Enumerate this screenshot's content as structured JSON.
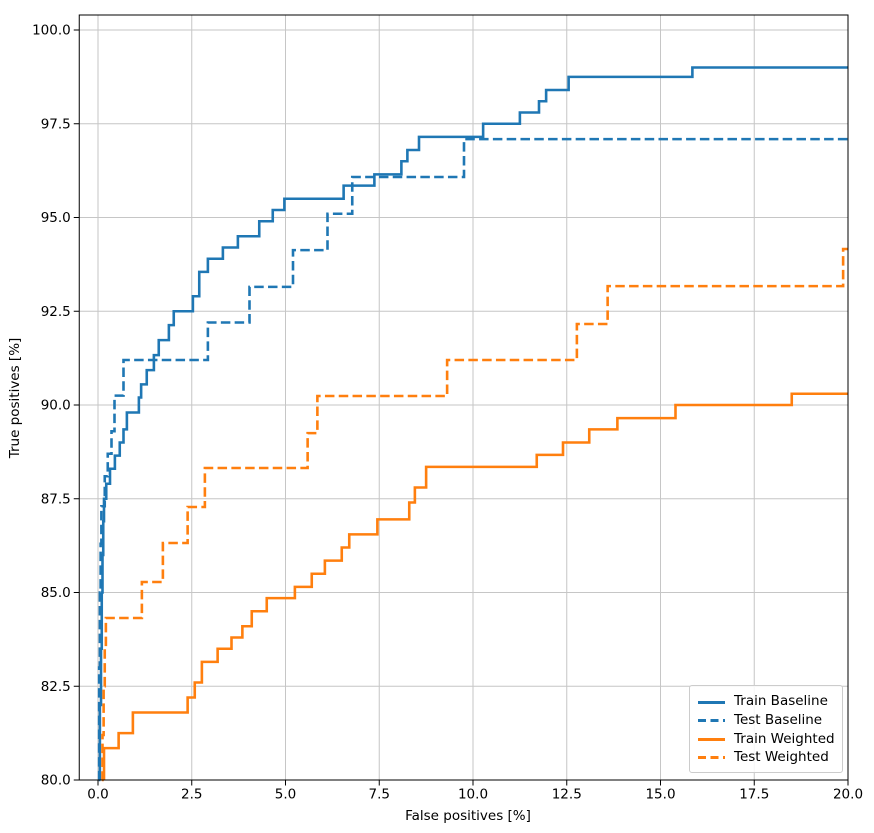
{
  "figure": {
    "background": "#ffffff",
    "axis_color": "#000000",
    "grid_color": "#c6c6c6",
    "text_color": "#000000"
  },
  "chart_data": {
    "type": "line",
    "subtype": "step-roc",
    "title": "",
    "xlabel": "False positives [%]",
    "ylabel": "True positives [%]",
    "xlim": [
      -0.5,
      20
    ],
    "ylim": [
      80,
      100.4
    ],
    "grid": true,
    "legend_position": "lower right",
    "xticks": {
      "values": [
        0,
        2.5,
        5,
        7.5,
        10,
        12.5,
        15,
        17.5,
        20
      ],
      "labels": [
        "0.0",
        "2.5",
        "5.0",
        "7.5",
        "10.0",
        "12.5",
        "15.0",
        "17.5",
        "20.0"
      ]
    },
    "yticks": {
      "values": [
        80,
        82.5,
        85,
        87.5,
        90,
        92.5,
        95,
        97.5,
        100
      ],
      "labels": [
        "80.0",
        "82.5",
        "85.0",
        "87.5",
        "90.0",
        "92.5",
        "95.0",
        "97.5",
        "100.0"
      ]
    },
    "series": [
      {
        "name": "Train Baseline",
        "color": "#1f77b4",
        "linestyle": "solid",
        "x_start": 0.05,
        "x_end": 20,
        "steps": [
          [
            0.05,
            82.0
          ],
          [
            0.08,
            83.5
          ],
          [
            0.1,
            85.0
          ],
          [
            0.12,
            86.0
          ],
          [
            0.14,
            86.9
          ],
          [
            0.16,
            87.5
          ],
          [
            0.22,
            87.9
          ],
          [
            0.32,
            88.3
          ],
          [
            0.45,
            88.65
          ],
          [
            0.58,
            89.0
          ],
          [
            0.68,
            89.35
          ],
          [
            0.77,
            89.8
          ],
          [
            1.09,
            90.2
          ],
          [
            1.15,
            90.55
          ],
          [
            1.3,
            90.93
          ],
          [
            1.49,
            91.33
          ],
          [
            1.62,
            91.73
          ],
          [
            1.89,
            92.13
          ],
          [
            2.02,
            92.5
          ],
          [
            2.53,
            92.9
          ],
          [
            2.7,
            93.55
          ],
          [
            2.93,
            93.9
          ],
          [
            3.33,
            94.2
          ],
          [
            3.73,
            94.5
          ],
          [
            4.3,
            94.9
          ],
          [
            4.66,
            95.2
          ],
          [
            4.97,
            95.5
          ],
          [
            6.55,
            95.85
          ],
          [
            7.37,
            96.15
          ],
          [
            8.09,
            96.5
          ],
          [
            8.25,
            96.8
          ],
          [
            8.56,
            97.15
          ],
          [
            10.27,
            97.5
          ],
          [
            11.25,
            97.8
          ],
          [
            11.76,
            98.1
          ],
          [
            11.95,
            98.4
          ],
          [
            12.55,
            98.75
          ],
          [
            15.85,
            99.0
          ]
        ]
      },
      {
        "name": "Test Baseline",
        "color": "#1f77b4",
        "linestyle": "dashed",
        "x_start": 0.02,
        "x_end": 20,
        "steps": [
          [
            0.03,
            83.0
          ],
          [
            0.05,
            85.0
          ],
          [
            0.07,
            86.3
          ],
          [
            0.09,
            87.3
          ],
          [
            0.18,
            88.1
          ],
          [
            0.26,
            88.7
          ],
          [
            0.36,
            89.3
          ],
          [
            0.44,
            90.25
          ],
          [
            0.68,
            91.2
          ],
          [
            2.93,
            92.2
          ],
          [
            4.04,
            93.15
          ],
          [
            5.2,
            94.13
          ],
          [
            6.12,
            95.1
          ],
          [
            6.78,
            96.08
          ],
          [
            9.76,
            97.09
          ]
        ]
      },
      {
        "name": "Train Weighted",
        "color": "#ff7f0e",
        "linestyle": "solid",
        "x_start": 0.16,
        "x_end": 20,
        "steps": [
          [
            0.16,
            80.85
          ],
          [
            0.55,
            81.25
          ],
          [
            0.93,
            81.8
          ],
          [
            2.39,
            82.2
          ],
          [
            2.58,
            82.6
          ],
          [
            2.77,
            83.15
          ],
          [
            3.19,
            83.5
          ],
          [
            3.56,
            83.8
          ],
          [
            3.85,
            84.1
          ],
          [
            4.1,
            84.5
          ],
          [
            4.5,
            84.85
          ],
          [
            5.25,
            85.15
          ],
          [
            5.7,
            85.5
          ],
          [
            6.05,
            85.85
          ],
          [
            6.5,
            86.2
          ],
          [
            6.7,
            86.55
          ],
          [
            7.45,
            86.95
          ],
          [
            8.3,
            87.4
          ],
          [
            8.45,
            87.8
          ],
          [
            8.75,
            88.35
          ],
          [
            11.7,
            88.67
          ],
          [
            12.4,
            89.0
          ],
          [
            13.1,
            89.35
          ],
          [
            13.85,
            89.65
          ],
          [
            15.4,
            90.0
          ],
          [
            18.5,
            90.3
          ]
        ]
      },
      {
        "name": "Test Weighted",
        "color": "#ff7f0e",
        "linestyle": "dashed",
        "x_start": 0.1,
        "x_end": 20,
        "steps": [
          [
            0.12,
            81.2
          ],
          [
            0.15,
            82.5
          ],
          [
            0.18,
            83.5
          ],
          [
            0.21,
            84.32
          ],
          [
            1.17,
            85.28
          ],
          [
            1.73,
            86.32
          ],
          [
            2.39,
            87.28
          ],
          [
            2.85,
            88.32
          ],
          [
            5.59,
            89.25
          ],
          [
            5.85,
            90.24
          ],
          [
            9.31,
            91.2
          ],
          [
            12.77,
            92.16
          ],
          [
            13.59,
            93.17
          ],
          [
            19.87,
            94.16
          ]
        ]
      }
    ]
  },
  "legend": {
    "items": [
      {
        "label": "Train Baseline",
        "color": "#1f77b4",
        "linestyle": "solid"
      },
      {
        "label": "Test Baseline",
        "color": "#1f77b4",
        "linestyle": "dashed"
      },
      {
        "label": "Train Weighted",
        "color": "#ff7f0e",
        "linestyle": "solid"
      },
      {
        "label": "Test Weighted",
        "color": "#ff7f0e",
        "linestyle": "dashed"
      }
    ]
  }
}
